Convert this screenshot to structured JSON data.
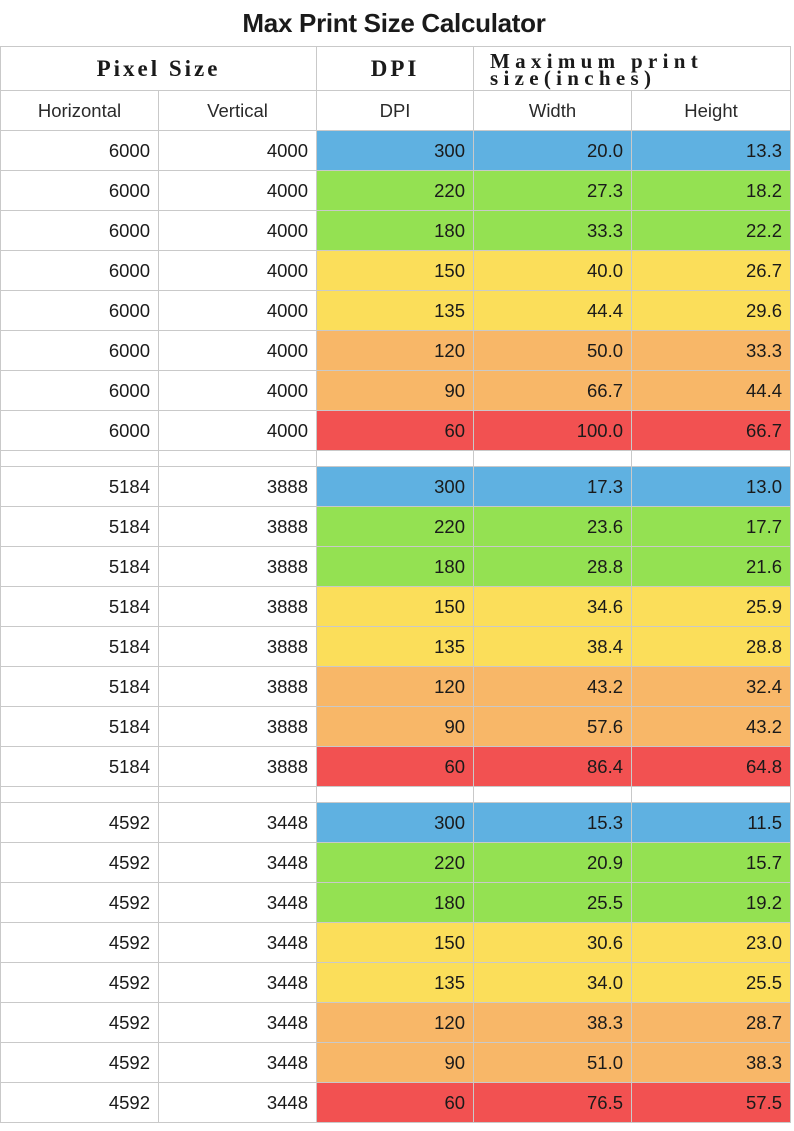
{
  "title": "Max Print Size Calculator",
  "group_headers": {
    "pixel_size": "Pixel Size",
    "dpi": "DPI",
    "max_print": "Maximum print size(inches)"
  },
  "column_headers": [
    "Horizontal",
    "Vertical",
    "DPI",
    "Width",
    "Height"
  ],
  "colors": {
    "300": "#5fb1e1",
    "220": "#94e152",
    "180": "#94e152",
    "150": "#fbde5a",
    "135": "#fbde5a",
    "120": "#f8b768",
    "90": "#f8b768",
    "60": "#f25151"
  },
  "groups": [
    {
      "rows": [
        [
          "6000",
          "4000",
          "300",
          "20.0",
          "13.3"
        ],
        [
          "6000",
          "4000",
          "220",
          "27.3",
          "18.2"
        ],
        [
          "6000",
          "4000",
          "180",
          "33.3",
          "22.2"
        ],
        [
          "6000",
          "4000",
          "150",
          "40.0",
          "26.7"
        ],
        [
          "6000",
          "4000",
          "135",
          "44.4",
          "29.6"
        ],
        [
          "6000",
          "4000",
          "120",
          "50.0",
          "33.3"
        ],
        [
          "6000",
          "4000",
          "90",
          "66.7",
          "44.4"
        ],
        [
          "6000",
          "4000",
          "60",
          "100.0",
          "66.7"
        ]
      ]
    },
    {
      "rows": [
        [
          "5184",
          "3888",
          "300",
          "17.3",
          "13.0"
        ],
        [
          "5184",
          "3888",
          "220",
          "23.6",
          "17.7"
        ],
        [
          "5184",
          "3888",
          "180",
          "28.8",
          "21.6"
        ],
        [
          "5184",
          "3888",
          "150",
          "34.6",
          "25.9"
        ],
        [
          "5184",
          "3888",
          "135",
          "38.4",
          "28.8"
        ],
        [
          "5184",
          "3888",
          "120",
          "43.2",
          "32.4"
        ],
        [
          "5184",
          "3888",
          "90",
          "57.6",
          "43.2"
        ],
        [
          "5184",
          "3888",
          "60",
          "86.4",
          "64.8"
        ]
      ]
    },
    {
      "rows": [
        [
          "4592",
          "3448",
          "300",
          "15.3",
          "11.5"
        ],
        [
          "4592",
          "3448",
          "220",
          "20.9",
          "15.7"
        ],
        [
          "4592",
          "3448",
          "180",
          "25.5",
          "19.2"
        ],
        [
          "4592",
          "3448",
          "150",
          "30.6",
          "23.0"
        ],
        [
          "4592",
          "3448",
          "135",
          "34.0",
          "25.5"
        ],
        [
          "4592",
          "3448",
          "120",
          "38.3",
          "28.7"
        ],
        [
          "4592",
          "3448",
          "90",
          "51.0",
          "38.3"
        ],
        [
          "4592",
          "3448",
          "60",
          "76.5",
          "57.5"
        ]
      ]
    }
  ]
}
